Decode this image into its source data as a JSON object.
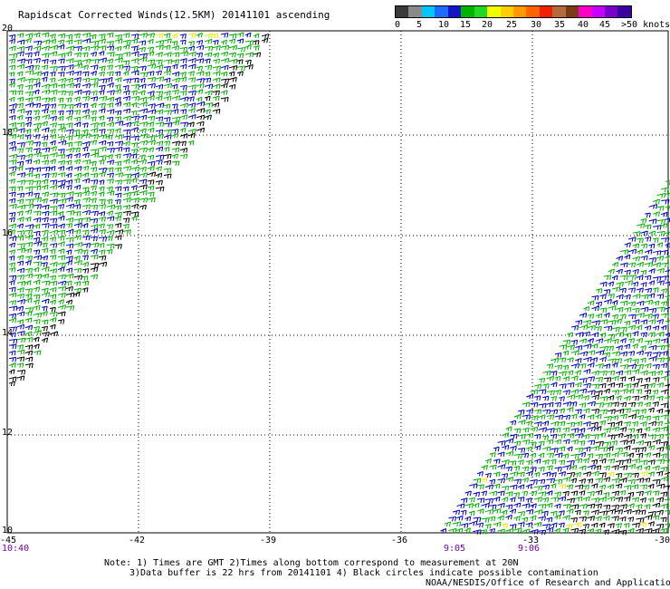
{
  "title": "Rapidscat Corrected Winds(12.5KM) 20141101 ascending",
  "colorbar": {
    "colors": [
      "#3a3a3a",
      "#8a8a8a",
      "#00c8ff",
      "#1e6cff",
      "#1515c8",
      "#00b400",
      "#22d822",
      "#f0ff00",
      "#ffd000",
      "#ff9a00",
      "#ff6400",
      "#ee2200",
      "#b46a3c",
      "#7a3c14",
      "#ff00c8",
      "#c800ff",
      "#7800c8",
      "#3c00a0"
    ],
    "labels": [
      "0",
      "5",
      "10",
      "15",
      "20",
      "25",
      "30",
      "35",
      "40",
      "45",
      ">50 knots"
    ]
  },
  "lat_labels": [
    "20",
    "18",
    "16",
    "14",
    "12",
    "10"
  ],
  "lon_labels": [
    "-45",
    "-42",
    "-39",
    "-36",
    "-33",
    "-30"
  ],
  "time_labels": [
    "10:40",
    "9:05",
    "9:06"
  ],
  "notes": {
    "line1": "Note: 1) Times are GMT 2)Times along bottom correspond to measurement at 20N",
    "line2": "3)Data buffer is 22 hrs from 20141101 4) Black circles indicate possible contamination"
  },
  "credit": "NOAA/NESDIS/Office of Research and Applications",
  "map": {
    "lat_range": [
      10,
      20
    ],
    "lon_range": [
      -45,
      -30
    ],
    "speed_colors": {
      "low": "#0000c0",
      "mid": "#00b000",
      "high": "#f5e600",
      "flagged": "#000000"
    }
  }
}
